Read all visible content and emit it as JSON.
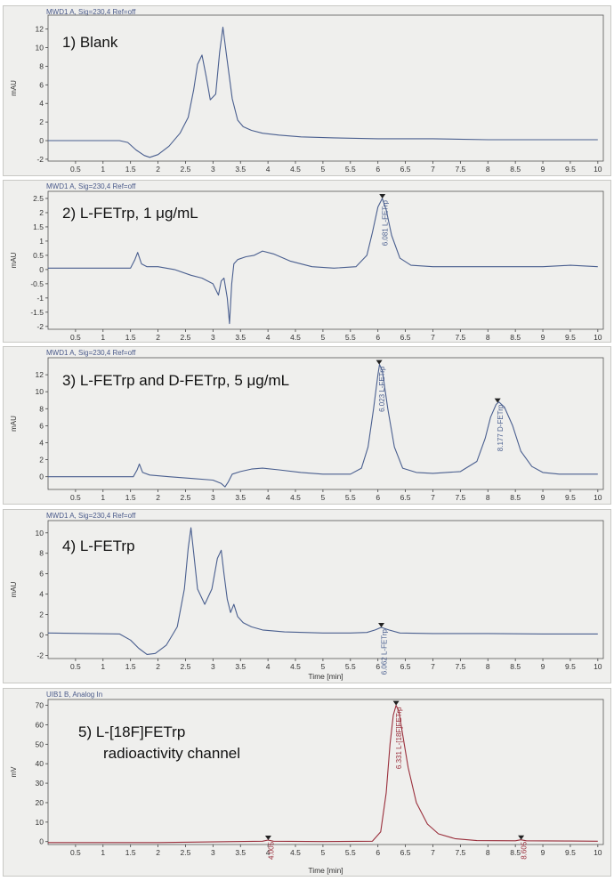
{
  "chart_data": [
    {
      "type": "line",
      "header": "MWD1 A, Sig=230,4 Ref=off",
      "title": "1) Blank",
      "ylabel": "mAU",
      "xlabel": "",
      "xlim": [
        0,
        10.1
      ],
      "ylim": [
        -2.2,
        13.5
      ],
      "yticks": [
        -2,
        0,
        2,
        4,
        6,
        8,
        10,
        12
      ],
      "xticks": [
        0.5,
        1,
        1.5,
        2,
        2.5,
        3,
        3.5,
        4,
        4.5,
        5,
        5.5,
        6,
        6.5,
        7,
        7.5,
        8,
        8.5,
        9,
        9.5,
        10
      ],
      "series": [
        {
          "color": "#4a5f8f",
          "x": [
            0,
            1.3,
            1.45,
            1.6,
            1.75,
            1.85,
            2.0,
            2.2,
            2.4,
            2.55,
            2.65,
            2.72,
            2.8,
            2.88,
            2.95,
            3.05,
            3.12,
            3.18,
            3.25,
            3.35,
            3.45,
            3.55,
            3.7,
            3.9,
            4.2,
            4.6,
            5.2,
            6,
            7,
            8,
            9,
            10
          ],
          "y": [
            0,
            0,
            -0.2,
            -1.0,
            -1.6,
            -1.8,
            -1.5,
            -0.6,
            0.8,
            2.5,
            5.5,
            8.2,
            9.2,
            6.8,
            4.4,
            5.0,
            9.5,
            12.2,
            9.0,
            4.5,
            2.2,
            1.5,
            1.1,
            0.8,
            0.6,
            0.4,
            0.3,
            0.2,
            0.2,
            0.1,
            0.1,
            0.1
          ]
        }
      ],
      "peaks": []
    },
    {
      "type": "line",
      "header": "MWD1 A, Sig=230,4 Ref=off",
      "title": "2) L-FETrp, 1 μg/mL",
      "ylabel": "mAU",
      "xlabel": "",
      "xlim": [
        0,
        10.1
      ],
      "ylim": [
        -2.1,
        2.75
      ],
      "yticks": [
        -2,
        -1.5,
        -1,
        -0.5,
        0,
        0.5,
        1,
        1.5,
        2,
        2.5
      ],
      "xticks": [
        0.5,
        1,
        1.5,
        2,
        2.5,
        3,
        3.5,
        4,
        4.5,
        5,
        5.5,
        6,
        6.5,
        7,
        7.5,
        8,
        8.5,
        9,
        9.5,
        10
      ],
      "series": [
        {
          "color": "#4a5f8f",
          "x": [
            0,
            1.5,
            1.58,
            1.63,
            1.7,
            1.8,
            2.0,
            2.3,
            2.6,
            2.8,
            3.0,
            3.1,
            3.15,
            3.2,
            3.26,
            3.3,
            3.34,
            3.38,
            3.45,
            3.6,
            3.75,
            3.9,
            4.1,
            4.4,
            4.8,
            5.2,
            5.6,
            5.8,
            5.9,
            6.0,
            6.08,
            6.15,
            6.25,
            6.4,
            6.6,
            7.0,
            8.0,
            9.0,
            9.5,
            10
          ],
          "y": [
            0.05,
            0.05,
            0.35,
            0.6,
            0.2,
            0.1,
            0.1,
            0.0,
            -0.2,
            -0.3,
            -0.5,
            -0.9,
            -0.4,
            -0.3,
            -1.0,
            -1.9,
            -0.5,
            0.2,
            0.35,
            0.45,
            0.5,
            0.65,
            0.55,
            0.3,
            0.1,
            0.05,
            0.1,
            0.5,
            1.3,
            2.2,
            2.5,
            2.1,
            1.2,
            0.4,
            0.15,
            0.1,
            0.1,
            0.1,
            0.15,
            0.1
          ]
        }
      ],
      "peaks": [
        {
          "x": 6.081,
          "y": 2.5,
          "label": "6.081 L-FETrp"
        }
      ]
    },
    {
      "type": "line",
      "header": "MWD1 A, Sig=230,4 Ref=off",
      "title": "3) L-FETrp and D-FETrp, 5 μg/mL",
      "ylabel": "mAU",
      "xlabel": "",
      "xlim": [
        0,
        10.1
      ],
      "ylim": [
        -1.5,
        14
      ],
      "yticks": [
        0,
        2,
        4,
        6,
        8,
        10,
        12
      ],
      "xticks": [
        0.5,
        1,
        1.5,
        2,
        2.5,
        3,
        3.5,
        4,
        4.5,
        5,
        5.5,
        6,
        6.5,
        7,
        7.5,
        8,
        8.5,
        9,
        9.5,
        10
      ],
      "series": [
        {
          "color": "#4a5f8f",
          "x": [
            0,
            1.55,
            1.62,
            1.66,
            1.72,
            1.85,
            2.2,
            2.6,
            3.0,
            3.15,
            3.22,
            3.28,
            3.35,
            3.5,
            3.7,
            3.9,
            4.2,
            4.6,
            5.0,
            5.5,
            5.7,
            5.82,
            5.92,
            6.0,
            6.03,
            6.08,
            6.18,
            6.3,
            6.45,
            6.7,
            7.0,
            7.5,
            7.8,
            7.95,
            8.05,
            8.15,
            8.2,
            8.3,
            8.45,
            8.6,
            8.8,
            9.0,
            9.3,
            10
          ],
          "y": [
            0,
            0,
            0.8,
            1.5,
            0.5,
            0.2,
            0.0,
            -0.2,
            -0.4,
            -0.8,
            -1.2,
            -0.6,
            0.3,
            0.6,
            0.9,
            1.0,
            0.8,
            0.5,
            0.3,
            0.3,
            1.0,
            3.5,
            8.0,
            12.0,
            13.2,
            12.5,
            8.0,
            3.5,
            1.0,
            0.5,
            0.4,
            0.6,
            1.8,
            4.5,
            7.0,
            8.5,
            8.8,
            8.2,
            6.0,
            3.0,
            1.2,
            0.5,
            0.3,
            0.3
          ]
        }
      ],
      "peaks": [
        {
          "x": 6.023,
          "y": 13.2,
          "label": "6.023 L-FETrp"
        },
        {
          "x": 8.177,
          "y": 8.7,
          "label": "8.177 D-FETrp"
        }
      ]
    },
    {
      "type": "line",
      "header": "MWD1 A, Sig=230,4 Ref=off",
      "title": "4) L-FETrp",
      "ylabel": "mAU",
      "xlabel": "Time [min]",
      "xlim": [
        0,
        10.1
      ],
      "ylim": [
        -2.3,
        11.2
      ],
      "yticks": [
        -2,
        0,
        2,
        4,
        6,
        8,
        10
      ],
      "xticks": [
        0.5,
        1,
        1.5,
        2,
        2.5,
        3,
        3.5,
        4,
        4.5,
        5,
        5.5,
        6,
        6.5,
        7,
        7.5,
        8,
        8.5,
        9,
        9.5,
        10
      ],
      "series": [
        {
          "color": "#4a5f8f",
          "x": [
            0,
            1.3,
            1.5,
            1.65,
            1.8,
            1.95,
            2.15,
            2.35,
            2.48,
            2.55,
            2.6,
            2.65,
            2.72,
            2.85,
            2.98,
            3.08,
            3.15,
            3.2,
            3.26,
            3.32,
            3.38,
            3.45,
            3.55,
            3.7,
            3.9,
            4.3,
            5.0,
            5.5,
            5.8,
            5.95,
            6.06,
            6.2,
            6.4,
            7,
            8,
            9,
            10
          ],
          "y": [
            0.2,
            0.1,
            -0.5,
            -1.3,
            -1.9,
            -1.8,
            -1.0,
            0.8,
            4.5,
            8.5,
            10.5,
            8.0,
            4.5,
            3.0,
            4.5,
            7.5,
            8.3,
            6.0,
            3.5,
            2.2,
            3.0,
            1.8,
            1.2,
            0.8,
            0.5,
            0.3,
            0.2,
            0.2,
            0.25,
            0.5,
            0.75,
            0.5,
            0.2,
            0.15,
            0.15,
            0.1,
            0.1
          ]
        }
      ],
      "peaks": [
        {
          "x": 6.062,
          "y": 0.75,
          "label": "6.062 L-FETrp"
        }
      ]
    },
    {
      "type": "line",
      "header": "UIB1 B, Analog In",
      "title": "5) L-[18F]FETrp",
      "title_line2": "radioactivity channel",
      "ylabel": "mV",
      "xlabel": "Time [min]",
      "xlim": [
        0,
        10.1
      ],
      "ylim": [
        -1.5,
        73
      ],
      "yticks": [
        0,
        10,
        20,
        30,
        40,
        50,
        60,
        70
      ],
      "xticks": [
        0.5,
        1,
        1.5,
        2,
        2.5,
        3,
        3.5,
        4,
        4.5,
        5,
        5.5,
        6,
        6.5,
        7,
        7.5,
        8,
        8.5,
        9,
        9.5,
        10
      ],
      "series": [
        {
          "color": "#9a2f3c",
          "x": [
            0,
            2.0,
            3.9,
            4.0,
            4.1,
            5.0,
            5.9,
            6.05,
            6.15,
            6.22,
            6.28,
            6.33,
            6.38,
            6.45,
            6.55,
            6.7,
            6.9,
            7.1,
            7.4,
            7.8,
            8.5,
            8.6,
            8.7,
            9.5,
            10
          ],
          "y": [
            -0.5,
            -0.5,
            0.2,
            0.8,
            0.2,
            0.0,
            0.2,
            5.0,
            25.0,
            50.0,
            65.0,
            70.0,
            67.0,
            55.0,
            38.0,
            20.0,
            9.0,
            4.0,
            1.5,
            0.5,
            0.4,
            0.9,
            0.4,
            0.3,
            0.2
          ]
        }
      ],
      "peaks": [
        {
          "x": 4.005,
          "y": 0.8,
          "label": "4.005"
        },
        {
          "x": 6.331,
          "y": 70.0,
          "label": "6.331 L-[18F]FETrp"
        },
        {
          "x": 8.605,
          "y": 0.9,
          "label": "8.605"
        }
      ]
    }
  ]
}
